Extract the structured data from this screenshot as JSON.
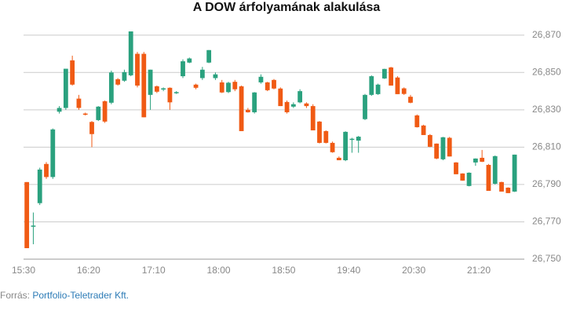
{
  "chart_data": {
    "type": "candlestick",
    "title": "A DOW árfolyamának alakulása",
    "x": [
      "15:30",
      "15:35",
      "15:40",
      "15:45",
      "15:50",
      "15:55",
      "16:00",
      "16:05",
      "16:10",
      "16:15",
      "16:20",
      "16:25",
      "16:30",
      "16:35",
      "16:40",
      "16:45",
      "16:50",
      "16:55",
      "17:00",
      "17:05",
      "17:10",
      "17:15",
      "17:20",
      "17:25",
      "17:30",
      "17:35",
      "17:40",
      "17:45",
      "17:50",
      "17:55",
      "18:00",
      "18:05",
      "18:10",
      "18:15",
      "18:20",
      "18:25",
      "18:30",
      "18:35",
      "18:40",
      "18:45",
      "18:50",
      "18:55",
      "19:00",
      "19:05",
      "19:10",
      "19:15",
      "19:20",
      "19:25",
      "19:30",
      "19:35",
      "19:40",
      "19:45",
      "19:50",
      "19:55",
      "20:00",
      "20:05",
      "20:10",
      "20:15",
      "20:20",
      "20:25",
      "20:30",
      "20:35",
      "20:40",
      "20:45",
      "20:50",
      "20:55",
      "21:00",
      "21:05",
      "21:10",
      "21:15",
      "21:20",
      "21:25",
      "21:30",
      "21:35",
      "21:40",
      "21:45"
    ],
    "open": [
      26791.3,
      26767.5,
      26780,
      26801,
      26794,
      26829,
      26831,
      26856.5,
      26836,
      26828,
      26823.5,
      26824.5,
      26834.6,
      26833.8,
      26846.4,
      26845.6,
      26848.5,
      26860,
      26860,
      26838,
      26842.6,
      26841,
      26841.8,
      26839,
      26848,
      26855.3,
      26843.5,
      26847,
      26855.3,
      26847,
      26844.7,
      26839.5,
      26845,
      26842.6,
      26830,
      26828.7,
      26844.7,
      26844.7,
      26846,
      26841.4,
      26834.2,
      26831.7,
      26834,
      26833.4,
      26832,
      26823.7,
      26818.6,
      26812.3,
      26804.3,
      26803,
      26814,
      26813.5,
      26825,
      26838,
      26838.4,
      26846.8,
      26852.7,
      26847.3,
      26841.5,
      26837,
      26827,
      26821.6,
      26816.5,
      26811.9,
      26803.5,
      26815,
      26801.8,
      26795.9,
      26789.2,
      26801.8,
      26804.3,
      26800.5,
      26790.4,
      26791.3,
      26788.3,
      26786.2
    ],
    "high": [
      26791.3,
      26775,
      26799,
      26802,
      26820,
      26832,
      26852,
      26859,
      26838,
      26828.5,
      26824,
      26832,
      26835,
      26851,
      26847,
      26851.5,
      26872,
      26861,
      26861,
      26851.5,
      26843,
      26842,
      26842,
      26840,
      26857,
      26858,
      26844,
      26853,
      26862,
      26850,
      26846,
      26845,
      26846,
      26843,
      26831,
      26839.5,
      26849,
      26845,
      26846.5,
      26842,
      26835,
      26834,
      26841,
      26834,
      26833,
      26824,
      26819,
      26813,
      26805,
      26818.5,
      26815,
      26816,
      26838.5,
      26848.5,
      26844,
      26852,
      26853,
      26848,
      26842,
      26838,
      26827.5,
      26822,
      26817,
      26812,
      26815.5,
      26815.5,
      26802,
      26796,
      26796.5,
      26804,
      26808.5,
      26801,
      26805.5,
      26791.5,
      26788.5,
      26806
    ],
    "low": [
      26755.9,
      26758,
      26779,
      26793,
      26793,
      26828,
      26830,
      26843,
      26830,
      26827,
      26810,
      26824,
      26823,
      26833,
      26843,
      26845,
      26848,
      26842,
      26826,
      26830,
      26839,
      26840,
      26830,
      26838.5,
      26847,
      26855,
      26841,
      26846,
      26855,
      26846,
      26839,
      26839,
      26840,
      26818.6,
      26828.5,
      26828,
      26844,
      26840,
      26841,
      26832,
      26828,
      26831,
      26833.5,
      26831,
      26819,
      26812,
      26812,
      26807,
      26803,
      26802.5,
      26807,
      26807,
      26824.5,
      26837.5,
      26838,
      26846.5,
      26843,
      26838.4,
      26838,
      26833.5,
      26820.5,
      26816.5,
      26810,
      26803.5,
      26803,
      26805,
      26795.5,
      26792,
      26789,
      26800,
      26802,
      26786.6,
      26790,
      26786.2,
      26785.4,
      26786
    ],
    "close": [
      26755.9,
      26768,
      26798,
      26794,
      26819.5,
      26831,
      26852,
      26843.5,
      26831,
      26827.5,
      26817,
      26831.7,
      26823.7,
      26850,
      26843.5,
      26850.2,
      26872,
      26843,
      26826,
      26851.5,
      26839.7,
      26841.5,
      26834,
      26839.5,
      26856,
      26857.5,
      26841.8,
      26851.5,
      26862,
      26849,
      26839.3,
      26844.5,
      26841,
      26818.6,
      26828.7,
      26839.3,
      26847.7,
      26840.5,
      26841.4,
      26832,
      26828.7,
      26833,
      26840,
      26832,
      26819,
      26812.3,
      26812.3,
      26807.3,
      26803,
      26818.2,
      26814.5,
      26815.6,
      26838,
      26848,
      26843.5,
      26851.9,
      26843,
      26838.4,
      26838.5,
      26833.8,
      26820.7,
      26816.5,
      26810.2,
      26803.9,
      26815.3,
      26805,
      26795.5,
      26792.1,
      26796.3,
      26803.9,
      26802.2,
      26786.6,
      26805.2,
      26786.2,
      26785.4,
      26806
    ],
    "up_color": "#2aa17e",
    "down_color": "#f05a14",
    "xlim": [
      "15:30",
      "21:55"
    ],
    "xticks": [
      "15:30",
      "16:20",
      "17:10",
      "18:00",
      "18:50",
      "19:40",
      "20:30",
      "21:20"
    ],
    "ylim": [
      26750,
      26872
    ],
    "yticks": [
      {
        "value": 26750,
        "label": "26,750"
      },
      {
        "value": 26770,
        "label": "26,770"
      },
      {
        "value": 26790,
        "label": "26,790"
      },
      {
        "value": 26810,
        "label": "26,810"
      },
      {
        "value": 26830,
        "label": "26,830"
      },
      {
        "value": 26850,
        "label": "26,850"
      },
      {
        "value": 26870,
        "label": "26,870"
      }
    ],
    "grid": true
  },
  "source": {
    "label": "Forrás:",
    "text": "Portfolio-Teletrader Kft."
  }
}
